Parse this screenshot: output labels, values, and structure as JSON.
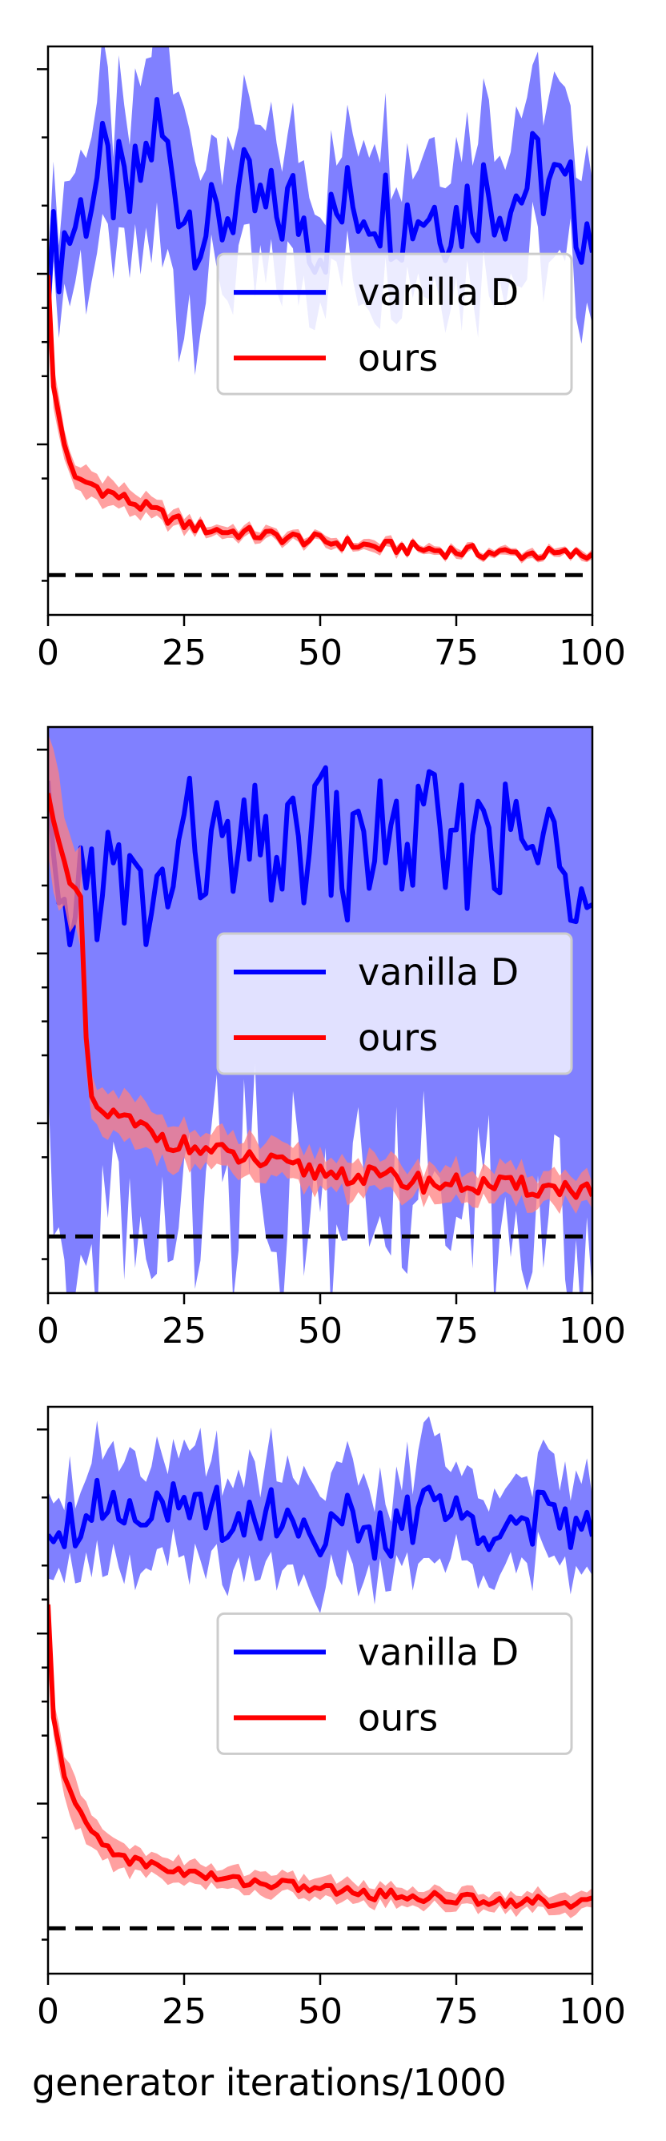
{
  "chart_data": [
    {
      "type": "line",
      "title": "",
      "xlabel": "",
      "ylabel": "",
      "xlim": [
        0,
        100
      ],
      "ylim": [
        0,
        1
      ],
      "yscale": "log",
      "x_ticks": [
        0,
        25,
        50,
        75,
        100
      ],
      "grid": false,
      "legend": "center-right",
      "reference_line": {
        "style": "dashed",
        "color": "#000000",
        "y": 0.07
      },
      "series": [
        {
          "name": "vanilla D",
          "color": "#0000ff",
          "band_color": "#8080ff",
          "x": [
            0,
            5,
            10,
            15,
            20,
            25,
            30,
            35,
            40,
            45,
            50,
            55,
            60,
            65,
            70,
            75,
            80,
            85,
            90,
            95,
            100
          ],
          "y": [
            0.62,
            0.69,
            0.78,
            0.72,
            0.86,
            0.72,
            0.67,
            0.74,
            0.7,
            0.72,
            0.66,
            0.72,
            0.73,
            0.7,
            0.72,
            0.7,
            0.75,
            0.73,
            0.78,
            0.73,
            0.68
          ],
          "y_low": [
            0.55,
            0.62,
            0.66,
            0.62,
            0.6,
            0.55,
            0.6,
            0.64,
            0.6,
            0.64,
            0.6,
            0.64,
            0.64,
            0.62,
            0.64,
            0.62,
            0.64,
            0.64,
            0.66,
            0.64,
            0.6
          ],
          "y_high": [
            0.7,
            0.78,
            0.86,
            0.82,
            0.93,
            0.84,
            0.76,
            0.84,
            0.8,
            0.82,
            0.74,
            0.82,
            0.84,
            0.8,
            0.82,
            0.8,
            0.88,
            0.84,
            0.9,
            0.84,
            0.78
          ]
        },
        {
          "name": "ours",
          "color": "#ff0000",
          "band_color": "#ff8080",
          "x": [
            0,
            1,
            3,
            5,
            8,
            10,
            15,
            20,
            25,
            30,
            35,
            40,
            45,
            50,
            55,
            60,
            65,
            70,
            75,
            80,
            85,
            90,
            95,
            100
          ],
          "y": [
            0.6,
            0.4,
            0.3,
            0.24,
            0.23,
            0.22,
            0.2,
            0.18,
            0.16,
            0.15,
            0.145,
            0.14,
            0.135,
            0.13,
            0.125,
            0.12,
            0.118,
            0.115,
            0.112,
            0.11,
            0.108,
            0.107,
            0.106,
            0.105
          ],
          "y_low": [
            0.55,
            0.37,
            0.28,
            0.22,
            0.21,
            0.2,
            0.185,
            0.168,
            0.15,
            0.142,
            0.137,
            0.132,
            0.128,
            0.123,
            0.118,
            0.113,
            0.111,
            0.109,
            0.106,
            0.104,
            0.102,
            0.101,
            0.1,
            0.099
          ],
          "y_high": [
            0.65,
            0.43,
            0.32,
            0.26,
            0.25,
            0.24,
            0.215,
            0.192,
            0.17,
            0.158,
            0.153,
            0.148,
            0.142,
            0.137,
            0.132,
            0.127,
            0.125,
            0.121,
            0.118,
            0.116,
            0.114,
            0.113,
            0.112,
            0.111
          ]
        }
      ]
    },
    {
      "type": "line",
      "title": "",
      "xlabel": "",
      "ylabel": "",
      "xlim": [
        0,
        100
      ],
      "ylim": [
        0,
        1
      ],
      "yscale": "log",
      "x_ticks": [
        0,
        25,
        50,
        75,
        100
      ],
      "grid": false,
      "legend": "center-right",
      "reference_line": {
        "style": "dashed",
        "color": "#000000",
        "y": 0.1
      },
      "series": [
        {
          "name": "vanilla D",
          "color": "#0000ff",
          "band_color": "#8080ff",
          "x": [
            0,
            2,
            5,
            10,
            15,
            20,
            25,
            30,
            35,
            40,
            45,
            50,
            55,
            60,
            65,
            70,
            75,
            80,
            85,
            90,
            95,
            100
          ],
          "y": [
            0.85,
            0.57,
            0.72,
            0.74,
            0.7,
            0.68,
            0.8,
            0.78,
            0.75,
            0.8,
            0.76,
            0.85,
            0.74,
            0.82,
            0.78,
            0.82,
            0.76,
            0.85,
            0.78,
            0.8,
            0.74,
            0.8
          ],
          "y_low": [
            0.0,
            0.0,
            0.0,
            0.0,
            0.0,
            0.0,
            0.0,
            0.0,
            0.0,
            0.0,
            0.0,
            0.0,
            0.0,
            0.0,
            0.0,
            0.0,
            0.0,
            0.0,
            0.0,
            0.0,
            0.0,
            0.0
          ],
          "y_high": [
            1.0,
            1.0,
            0.95,
            0.92,
            0.9,
            0.93,
            1.0,
            0.96,
            0.95,
            1.0,
            0.95,
            1.0,
            0.95,
            1.0,
            0.96,
            1.0,
            0.95,
            1.0,
            0.96,
            1.0,
            0.94,
            1.0
          ]
        },
        {
          "name": "ours",
          "color": "#ff0000",
          "band_color": "#ff8080",
          "x": [
            0,
            2,
            4,
            6,
            7,
            8,
            10,
            15,
            20,
            25,
            30,
            35,
            40,
            45,
            50,
            55,
            60,
            65,
            70,
            75,
            80,
            85,
            90,
            95,
            100
          ],
          "y": [
            0.88,
            0.8,
            0.72,
            0.7,
            0.45,
            0.33,
            0.32,
            0.3,
            0.28,
            0.26,
            0.25,
            0.24,
            0.23,
            0.22,
            0.215,
            0.21,
            0.205,
            0.2,
            0.195,
            0.192,
            0.19,
            0.188,
            0.186,
            0.185,
            0.184
          ],
          "y_low": [
            0.8,
            0.72,
            0.66,
            0.64,
            0.4,
            0.3,
            0.29,
            0.27,
            0.25,
            0.235,
            0.225,
            0.215,
            0.205,
            0.196,
            0.19,
            0.186,
            0.182,
            0.177,
            0.173,
            0.17,
            0.168,
            0.166,
            0.164,
            0.163,
            0.162
          ],
          "y_high": [
            0.96,
            0.88,
            0.78,
            0.76,
            0.5,
            0.36,
            0.35,
            0.33,
            0.31,
            0.285,
            0.275,
            0.265,
            0.255,
            0.244,
            0.24,
            0.234,
            0.228,
            0.223,
            0.217,
            0.214,
            0.212,
            0.21,
            0.208,
            0.207,
            0.206
          ]
        }
      ]
    },
    {
      "type": "line",
      "title": "",
      "xlabel": "generator iterations/1000",
      "ylabel": "",
      "xlim": [
        0,
        100
      ],
      "ylim": [
        0,
        1
      ],
      "yscale": "log",
      "x_ticks": [
        0,
        25,
        50,
        75,
        100
      ],
      "grid": false,
      "legend": "center-right",
      "reference_line": {
        "style": "dashed",
        "color": "#000000",
        "y": 0.08
      },
      "series": [
        {
          "name": "vanilla D",
          "color": "#0000ff",
          "band_color": "#8080ff",
          "x": [
            0,
            5,
            10,
            15,
            20,
            25,
            30,
            35,
            40,
            45,
            50,
            55,
            60,
            65,
            70,
            75,
            80,
            85,
            90,
            95,
            100
          ],
          "y": [
            0.8,
            0.8,
            0.84,
            0.82,
            0.84,
            0.8,
            0.82,
            0.8,
            0.82,
            0.8,
            0.78,
            0.8,
            0.76,
            0.78,
            0.85,
            0.8,
            0.8,
            0.79,
            0.8,
            0.8,
            0.77
          ],
          "y_low": [
            0.74,
            0.74,
            0.76,
            0.74,
            0.76,
            0.72,
            0.74,
            0.72,
            0.74,
            0.72,
            0.7,
            0.72,
            0.7,
            0.72,
            0.76,
            0.74,
            0.74,
            0.73,
            0.74,
            0.74,
            0.71
          ],
          "y_high": [
            0.86,
            0.86,
            0.9,
            0.9,
            0.9,
            0.88,
            0.88,
            0.86,
            0.88,
            0.86,
            0.84,
            0.86,
            0.82,
            0.84,
            0.94,
            0.86,
            0.86,
            0.85,
            0.86,
            0.86,
            0.83
          ]
        },
        {
          "name": "ours",
          "color": "#ff0000",
          "band_color": "#ff8080",
          "x": [
            0,
            1,
            3,
            5,
            8,
            10,
            15,
            20,
            25,
            30,
            35,
            40,
            45,
            50,
            55,
            60,
            65,
            70,
            75,
            80,
            85,
            90,
            95,
            100
          ],
          "y": [
            0.65,
            0.45,
            0.35,
            0.3,
            0.25,
            0.23,
            0.2,
            0.19,
            0.18,
            0.17,
            0.165,
            0.16,
            0.155,
            0.15,
            0.145,
            0.14,
            0.138,
            0.135,
            0.132,
            0.13,
            0.128,
            0.127,
            0.126,
            0.125
          ],
          "y_low": [
            0.6,
            0.42,
            0.32,
            0.27,
            0.225,
            0.208,
            0.183,
            0.173,
            0.163,
            0.155,
            0.15,
            0.145,
            0.141,
            0.136,
            0.132,
            0.127,
            0.125,
            0.122,
            0.12,
            0.118,
            0.116,
            0.115,
            0.114,
            0.113
          ],
          "y_high": [
            0.7,
            0.48,
            0.38,
            0.33,
            0.275,
            0.252,
            0.217,
            0.207,
            0.197,
            0.185,
            0.18,
            0.175,
            0.169,
            0.164,
            0.158,
            0.153,
            0.151,
            0.148,
            0.144,
            0.142,
            0.14,
            0.139,
            0.138,
            0.137
          ]
        }
      ]
    }
  ]
}
